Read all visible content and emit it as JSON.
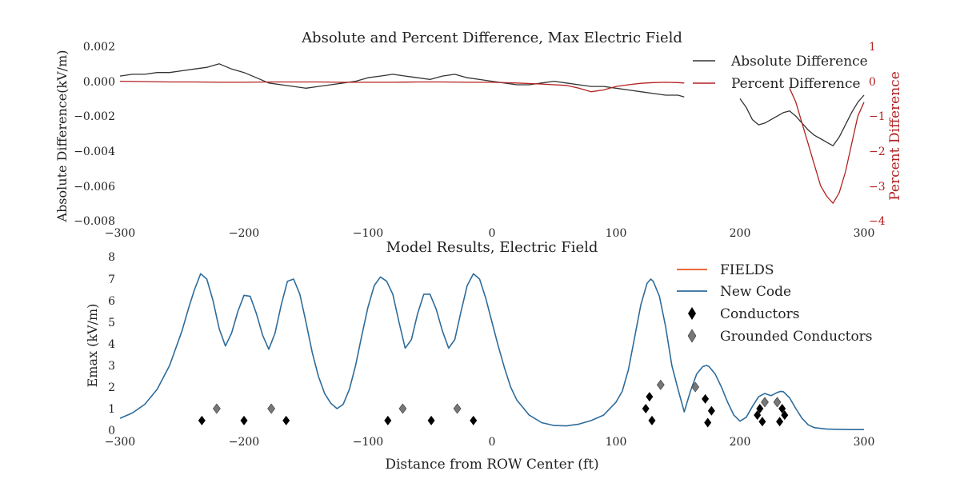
{
  "chart_data": [
    {
      "type": "line",
      "title": "Absolute and Percent Difference, Max Electric Field",
      "xlabel": "",
      "ylabel": "Absolute Difference(kV/m)",
      "y2label": "Percent Difference",
      "xlim": [
        -300,
        300
      ],
      "ylim": [
        -0.008,
        0.002
      ],
      "y2lim": [
        -4,
        1
      ],
      "xticks": [
        "−300",
        "−200",
        "−100",
        "0",
        "100",
        "200",
        "300"
      ],
      "yticks": [
        "0.002",
        "0.000",
        "−0.002",
        "−0.004",
        "−0.006",
        "−0.008"
      ],
      "y2ticks": [
        "1",
        "0",
        "−1",
        "−2",
        "−3",
        "−4"
      ],
      "legend": [
        "Absolute Difference",
        "Percent Difference"
      ],
      "legend_position": "top-right",
      "grid": false,
      "colors": {
        "absolute": "#333333",
        "percent": "#b22222"
      },
      "series": [
        {
          "name": "Absolute Difference",
          "axis": "left",
          "x": [
            -300,
            -290,
            -280,
            -270,
            -260,
            -250,
            -240,
            -230,
            -220,
            -210,
            -200,
            -190,
            -180,
            -170,
            -160,
            -150,
            -140,
            -130,
            -120,
            -110,
            -100,
            -90,
            -80,
            -70,
            -60,
            -50,
            -40,
            -30,
            -20,
            -10,
            0,
            10,
            20,
            30,
            40,
            50,
            60,
            70,
            80,
            90,
            100,
            110,
            120,
            130,
            140,
            150,
            155,
            200,
            205,
            210,
            215,
            220,
            225,
            230,
            235,
            240,
            245,
            250,
            255,
            260,
            265,
            270,
            275,
            280,
            285,
            290,
            295,
            300
          ],
          "y": [
            0.0003,
            0.0004,
            0.0004,
            0.0005,
            0.0005,
            0.0006,
            0.0007,
            0.0008,
            0.001,
            0.0007,
            0.0005,
            0.0002,
            -0.0001,
            -0.0002,
            -0.0003,
            -0.0004,
            -0.0003,
            -0.0002,
            -0.0001,
            0.0,
            0.0002,
            0.0003,
            0.0004,
            0.0003,
            0.0002,
            0.0001,
            0.0003,
            0.0004,
            0.0002,
            0.0001,
            0.0,
            -0.0001,
            -0.0002,
            -0.0002,
            -0.0001,
            0.0,
            -0.0001,
            -0.0002,
            -0.0003,
            -0.0003,
            -0.0004,
            -0.0005,
            -0.0006,
            -0.0007,
            -0.0008,
            -0.0008,
            -0.0009,
            -0.001,
            -0.0015,
            -0.0022,
            -0.0025,
            -0.0024,
            -0.0022,
            -0.002,
            -0.0018,
            -0.0017,
            -0.002,
            -0.0024,
            -0.0028,
            -0.0031,
            -0.0033,
            -0.0035,
            -0.0037,
            -0.0032,
            -0.0025,
            -0.0018,
            -0.0012,
            -0.0008
          ]
        },
        {
          "name": "Percent Difference",
          "axis": "right",
          "x": [
            -300,
            -280,
            -260,
            -240,
            -220,
            -200,
            -180,
            -160,
            -140,
            -120,
            -100,
            -80,
            -60,
            -40,
            -20,
            0,
            20,
            40,
            60,
            70,
            80,
            90,
            100,
            110,
            120,
            130,
            140,
            150,
            155,
            240,
            245,
            250,
            255,
            260,
            265,
            270,
            275,
            280,
            285,
            290,
            295,
            300
          ],
          "y": [
            0.0,
            -0.01,
            -0.02,
            -0.02,
            -0.03,
            -0.03,
            -0.02,
            -0.02,
            -0.02,
            -0.03,
            -0.03,
            -0.03,
            -0.02,
            -0.02,
            -0.03,
            -0.03,
            -0.05,
            -0.08,
            -0.12,
            -0.2,
            -0.3,
            -0.25,
            -0.15,
            -0.1,
            -0.06,
            -0.04,
            -0.03,
            -0.04,
            -0.05,
            -0.2,
            -0.6,
            -1.2,
            -1.8,
            -2.4,
            -3.0,
            -3.3,
            -3.5,
            -3.2,
            -2.6,
            -1.8,
            -1.0,
            -0.6
          ]
        }
      ]
    },
    {
      "type": "line",
      "title": "Model Results, Electric Field",
      "xlabel": "Distance from ROW Center (ft)",
      "ylabel": "Emax (kV/m)",
      "xlim": [
        -300,
        300
      ],
      "ylim": [
        0,
        8
      ],
      "xticks": [
        "−300",
        "−200",
        "−100",
        "0",
        "100",
        "200",
        "300"
      ],
      "yticks": [
        "0",
        "1",
        "2",
        "3",
        "4",
        "5",
        "6",
        "7",
        "8"
      ],
      "legend": [
        "FIELDS",
        "New Code",
        "Conductors",
        "Grounded Conductors"
      ],
      "legend_position": "top-right",
      "grid": false,
      "colors": {
        "fields": "#e8541e",
        "new_code": "#2e6c9b",
        "conductors": "#000000",
        "grounded": "#777777"
      },
      "series": [
        {
          "name": "New Code",
          "x": [
            -300,
            -290,
            -280,
            -270,
            -260,
            -250,
            -245,
            -240,
            -235,
            -230,
            -225,
            -220,
            -215,
            -210,
            -205,
            -200,
            -195,
            -190,
            -185,
            -180,
            -175,
            -170,
            -165,
            -160,
            -155,
            -150,
            -145,
            -140,
            -135,
            -130,
            -125,
            -120,
            -115,
            -110,
            -105,
            -100,
            -95,
            -90,
            -85,
            -80,
            -75,
            -70,
            -65,
            -60,
            -55,
            -50,
            -45,
            -40,
            -35,
            -30,
            -25,
            -20,
            -15,
            -10,
            -5,
            0,
            5,
            10,
            15,
            20,
            30,
            40,
            50,
            60,
            70,
            80,
            90,
            100,
            105,
            110,
            115,
            120,
            125,
            128,
            130,
            135,
            140,
            145,
            150,
            155,
            160,
            165,
            170,
            173,
            175,
            180,
            185,
            190,
            195,
            200,
            205,
            210,
            215,
            220,
            225,
            230,
            233,
            235,
            240,
            245,
            250,
            255,
            260,
            270,
            280,
            290,
            300
          ],
          "y": [
            0.55,
            0.8,
            1.2,
            1.9,
            3.0,
            4.6,
            5.6,
            6.5,
            7.25,
            7.0,
            6.0,
            4.7,
            3.9,
            4.5,
            5.5,
            6.25,
            6.2,
            5.4,
            4.4,
            3.75,
            4.5,
            5.8,
            6.9,
            7.0,
            6.3,
            5.0,
            3.6,
            2.5,
            1.7,
            1.25,
            1.0,
            1.2,
            1.9,
            3.0,
            4.4,
            5.7,
            6.7,
            7.1,
            6.9,
            6.3,
            5.0,
            3.8,
            4.2,
            5.4,
            6.3,
            6.3,
            5.6,
            4.6,
            3.8,
            4.2,
            5.5,
            6.7,
            7.25,
            7.0,
            6.1,
            5.0,
            3.9,
            2.9,
            2.0,
            1.4,
            0.7,
            0.35,
            0.22,
            0.2,
            0.28,
            0.45,
            0.7,
            1.3,
            1.8,
            2.8,
            4.3,
            5.8,
            6.8,
            7.0,
            6.9,
            6.2,
            4.8,
            3.0,
            1.9,
            0.85,
            1.8,
            2.6,
            2.95,
            3.0,
            2.95,
            2.6,
            2.0,
            1.3,
            0.7,
            0.42,
            0.6,
            1.1,
            1.55,
            1.7,
            1.6,
            1.75,
            1.8,
            1.78,
            1.5,
            1.0,
            0.55,
            0.25,
            0.12,
            0.05,
            0.04,
            0.03,
            0.03
          ]
        },
        {
          "name": "Conductors",
          "x": [
            -234,
            -200,
            -166,
            -84,
            -49,
            -15,
            124,
            127,
            129,
            172,
            174,
            177,
            214,
            216,
            218,
            232,
            234,
            236
          ],
          "y": [
            0.45,
            0.45,
            0.45,
            0.45,
            0.45,
            0.45,
            1.0,
            1.55,
            0.45,
            1.45,
            0.35,
            0.9,
            0.7,
            1.0,
            0.4,
            0.4,
            1.0,
            0.7
          ]
        },
        {
          "name": "Grounded Conductors",
          "x": [
            -222,
            -178,
            -72,
            -28,
            136,
            164,
            220,
            230
          ],
          "y": [
            1.0,
            1.0,
            1.0,
            1.0,
            2.1,
            2.0,
            1.3,
            1.3
          ]
        }
      ]
    }
  ]
}
